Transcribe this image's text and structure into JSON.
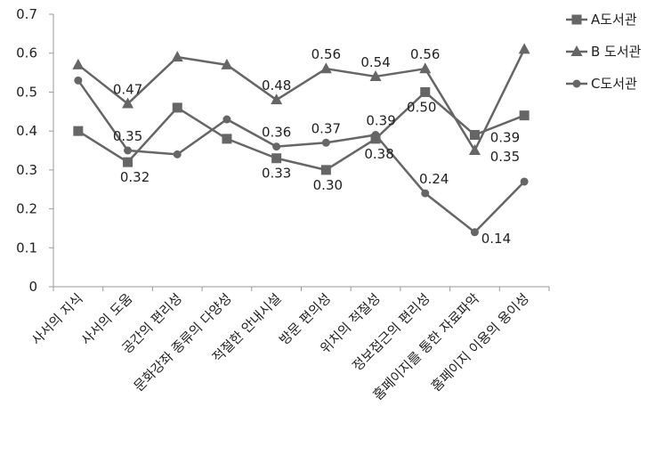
{
  "chart_data": {
    "type": "line",
    "categories": [
      "사서의 지식",
      "사서의 도움",
      "공간의 편리성",
      "문화강좌 종류의 다양성",
      "적절한 안내시설",
      "방문 편의성",
      "위치의 적절성",
      "정보접근의 편리성",
      "홈페이지를 통한 자료파악",
      "홈페이지 이용의 용이성"
    ],
    "series": [
      {
        "name": "A도서관",
        "marker": "square",
        "color": "#666666",
        "values": [
          0.4,
          0.32,
          0.46,
          0.38,
          0.33,
          0.3,
          0.38,
          0.5,
          0.39,
          0.44
        ]
      },
      {
        "name": "B 도서관",
        "marker": "triangle",
        "color": "#666666",
        "values": [
          0.57,
          0.47,
          0.59,
          0.57,
          0.48,
          0.56,
          0.54,
          0.56,
          0.35,
          0.61
        ]
      },
      {
        "name": "C도서관",
        "marker": "circle",
        "color": "#666666",
        "values": [
          0.53,
          0.35,
          0.34,
          0.43,
          0.36,
          0.37,
          0.39,
          0.24,
          0.14,
          0.27
        ]
      }
    ],
    "data_labels": [
      {
        "series": 0,
        "index": 1,
        "text": "0.32"
      },
      {
        "series": 0,
        "index": 4,
        "text": "0.33"
      },
      {
        "series": 0,
        "index": 5,
        "text": "0.30"
      },
      {
        "series": 0,
        "index": 6,
        "text": "0.38"
      },
      {
        "series": 0,
        "index": 7,
        "text": "0.50"
      },
      {
        "series": 0,
        "index": 8,
        "text": "0.39"
      },
      {
        "series": 1,
        "index": 1,
        "text": "0.47"
      },
      {
        "series": 1,
        "index": 4,
        "text": "0.48"
      },
      {
        "series": 1,
        "index": 5,
        "text": "0.56"
      },
      {
        "series": 1,
        "index": 6,
        "text": "0.54"
      },
      {
        "series": 1,
        "index": 7,
        "text": "0.56"
      },
      {
        "series": 1,
        "index": 8,
        "text": "0.35"
      },
      {
        "series": 2,
        "index": 1,
        "text": "0.35"
      },
      {
        "series": 2,
        "index": 4,
        "text": "0.36"
      },
      {
        "series": 2,
        "index": 5,
        "text": "0.37"
      },
      {
        "series": 2,
        "index": 6,
        "text": "0.39"
      },
      {
        "series": 2,
        "index": 7,
        "text": "0.24"
      },
      {
        "series": 2,
        "index": 8,
        "text": "0.14"
      }
    ],
    "y_ticks": [
      "0",
      "0.1",
      "0.2",
      "0.3",
      "0.4",
      "0.5",
      "0.6",
      "0.7"
    ],
    "ylim": [
      0,
      0.7
    ],
    "title": "",
    "xlabel": "",
    "ylabel": "",
    "grid": false,
    "legend_position": "top-right"
  }
}
